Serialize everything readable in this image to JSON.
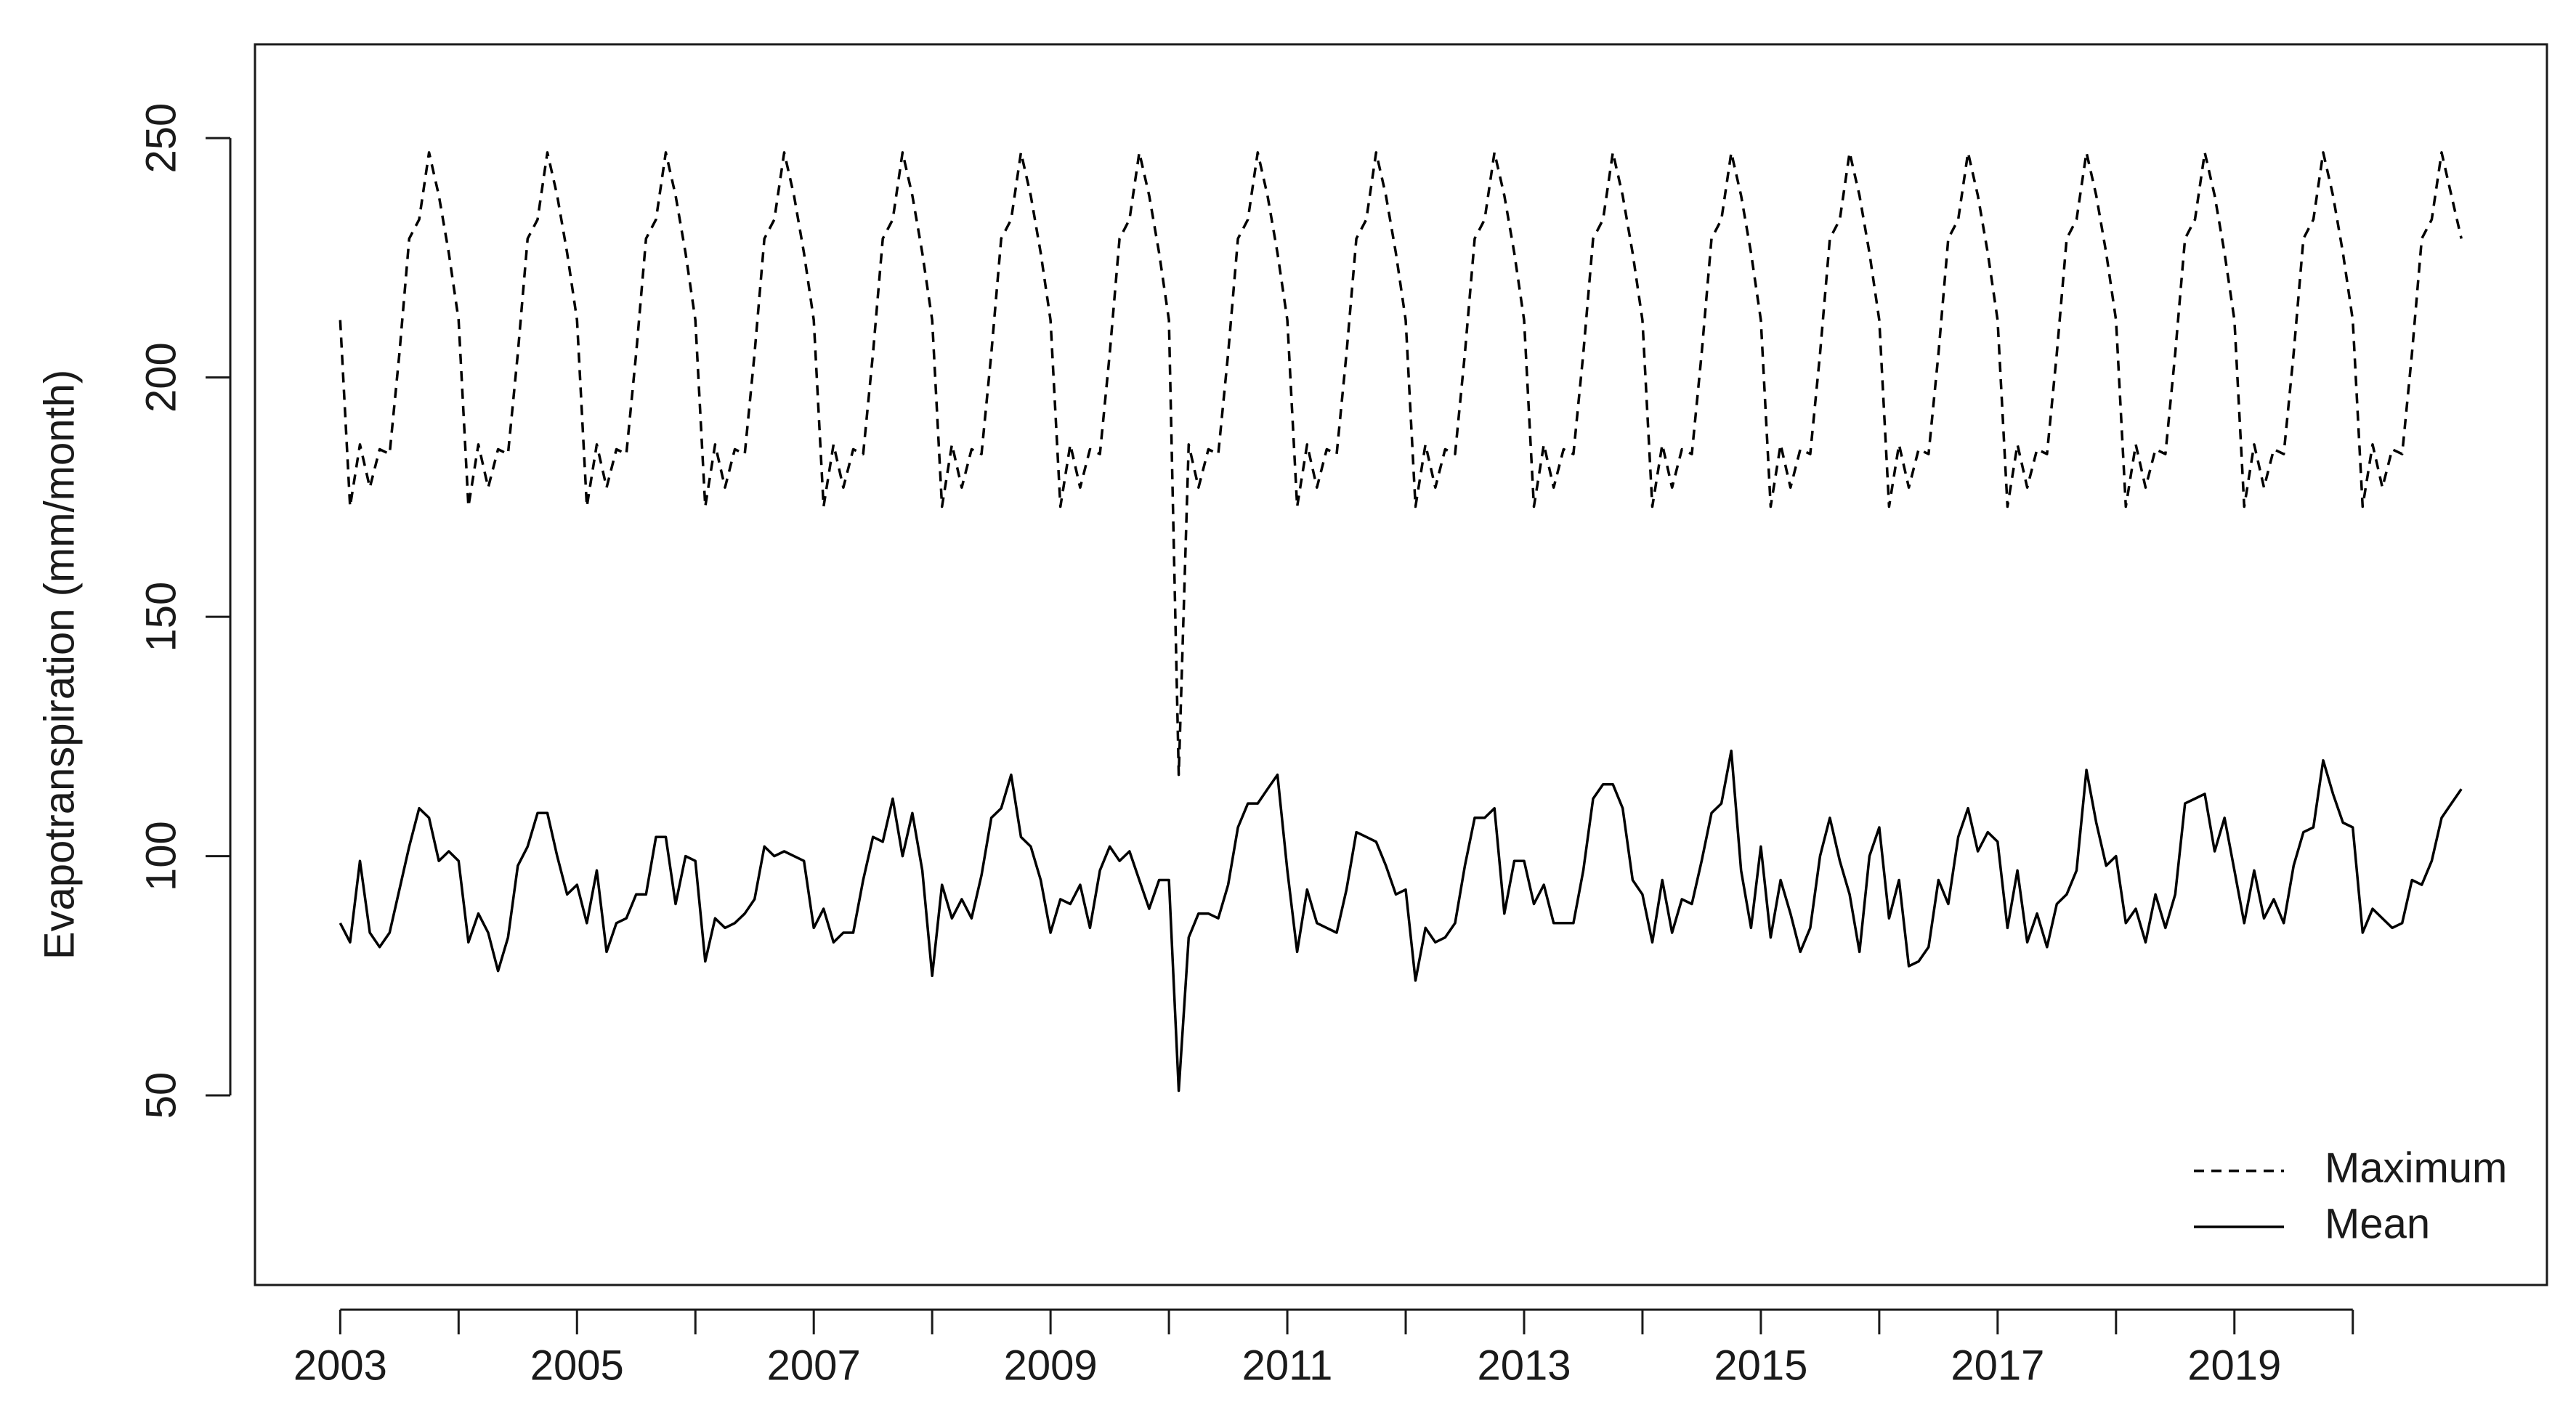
{
  "chart_data": {
    "type": "line",
    "ylabel": "Evapotranspiration (mm/month)",
    "xlim": [
      2002.28,
      2021.64
    ],
    "ylim": [
      10.4,
      269.6
    ],
    "xticks": [
      2003,
      2005,
      2007,
      2009,
      2011,
      2013,
      2015,
      2017,
      2019
    ],
    "xminor_ticks": [
      2004,
      2006,
      2008,
      2010,
      2012,
      2014,
      2016,
      2018,
      2020
    ],
    "yticks": [
      50,
      100,
      150,
      200,
      250
    ],
    "legend": "bottomright",
    "x": [
      2003,
      2003.083,
      2003.167,
      2003.25,
      2003.333,
      2003.417,
      2003.5,
      2003.583,
      2003.667,
      2003.75,
      2003.833,
      2003.917,
      2004,
      2004.083,
      2004.167,
      2004.25,
      2004.333,
      2004.417,
      2004.5,
      2004.583,
      2004.667,
      2004.75,
      2004.833,
      2004.917,
      2005,
      2005.083,
      2005.167,
      2005.25,
      2005.333,
      2005.417,
      2005.5,
      2005.583,
      2005.667,
      2005.75,
      2005.833,
      2005.917,
      2006,
      2006.083,
      2006.167,
      2006.25,
      2006.333,
      2006.417,
      2006.5,
      2006.583,
      2006.667,
      2006.75,
      2006.833,
      2006.917,
      2007,
      2007.083,
      2007.167,
      2007.25,
      2007.333,
      2007.417,
      2007.5,
      2007.583,
      2007.667,
      2007.75,
      2007.833,
      2007.917,
      2008,
      2008.083,
      2008.167,
      2008.25,
      2008.333,
      2008.417,
      2008.5,
      2008.583,
      2008.667,
      2008.75,
      2008.833,
      2008.917,
      2009,
      2009.083,
      2009.167,
      2009.25,
      2009.333,
      2009.417,
      2009.5,
      2009.583,
      2009.667,
      2009.75,
      2009.833,
      2009.917,
      2010,
      2010.083,
      2010.167,
      2010.25,
      2010.333,
      2010.417,
      2010.5,
      2010.583,
      2010.667,
      2010.75,
      2010.833,
      2010.917,
      2011,
      2011.083,
      2011.167,
      2011.25,
      2011.333,
      2011.417,
      2011.5,
      2011.583,
      2011.667,
      2011.75,
      2011.833,
      2011.917,
      2012,
      2012.083,
      2012.167,
      2012.25,
      2012.333,
      2012.417,
      2012.5,
      2012.583,
      2012.667,
      2012.75,
      2012.833,
      2012.917,
      2013,
      2013.083,
      2013.167,
      2013.25,
      2013.333,
      2013.417,
      2013.5,
      2013.583,
      2013.667,
      2013.75,
      2013.833,
      2013.917,
      2014,
      2014.083,
      2014.167,
      2014.25,
      2014.333,
      2014.417,
      2014.5,
      2014.583,
      2014.667,
      2014.75,
      2014.833,
      2014.917,
      2015,
      2015.083,
      2015.167,
      2015.25,
      2015.333,
      2015.417,
      2015.5,
      2015.583,
      2015.667,
      2015.75,
      2015.833,
      2015.917,
      2016,
      2016.083,
      2016.167,
      2016.25,
      2016.333,
      2016.417,
      2016.5,
      2016.583,
      2016.667,
      2016.75,
      2016.833,
      2016.917,
      2017,
      2017.083,
      2017.167,
      2017.25,
      2017.333,
      2017.417,
      2017.5,
      2017.583,
      2017.667,
      2017.75,
      2017.833,
      2017.917,
      2018,
      2018.083,
      2018.167,
      2018.25,
      2018.333,
      2018.417,
      2018.5,
      2018.583,
      2018.667,
      2018.75,
      2018.833,
      2018.917,
      2019,
      2019.083,
      2019.167,
      2019.25,
      2019.333,
      2019.417,
      2019.5,
      2019.583,
      2019.667,
      2019.75,
      2019.833,
      2019.917,
      2020,
      2020.083,
      2020.167,
      2020.25,
      2020.333,
      2020.417,
      2020.5,
      2020.583,
      2020.667,
      2020.75,
      2020.833,
      2020.917
    ],
    "series": [
      {
        "name": "Maximum",
        "color": "#000000",
        "linestyle": "dashed",
        "values": [
          212,
          173,
          186,
          177,
          185,
          184,
          205,
          229,
          233,
          247,
          238,
          226,
          212,
          173,
          186,
          177,
          185,
          184,
          205,
          229,
          233,
          247,
          238,
          226,
          212,
          173,
          186,
          177,
          185,
          184,
          205,
          229,
          233,
          247,
          238,
          226,
          212,
          173,
          186,
          177,
          185,
          184,
          205,
          229,
          233,
          247,
          238,
          226,
          212,
          173,
          186,
          177,
          185,
          184,
          205,
          229,
          233,
          247,
          238,
          226,
          212,
          173,
          186,
          177,
          185,
          184,
          205,
          229,
          233,
          247,
          238,
          226,
          212,
          173,
          186,
          177,
          185,
          184,
          205,
          229,
          233,
          247,
          238,
          226,
          212,
          117,
          186,
          177,
          185,
          184,
          205,
          229,
          233,
          247,
          238,
          226,
          212,
          173,
          186,
          177,
          185,
          184,
          205,
          229,
          233,
          247,
          238,
          226,
          212,
          173,
          186,
          177,
          185,
          184,
          205,
          229,
          233,
          247,
          238,
          226,
          212,
          173,
          186,
          177,
          185,
          184,
          205,
          229,
          233,
          247,
          238,
          226,
          212,
          173,
          186,
          177,
          185,
          184,
          205,
          229,
          233,
          247,
          238,
          226,
          212,
          173,
          186,
          177,
          185,
          184,
          205,
          229,
          233,
          247,
          238,
          226,
          212,
          173,
          186,
          177,
          185,
          184,
          205,
          229,
          233,
          247,
          238,
          226,
          212,
          173,
          186,
          177,
          185,
          184,
          205,
          229,
          233,
          247,
          238,
          226,
          212,
          173,
          186,
          177,
          185,
          184,
          205,
          229,
          233,
          247,
          238,
          226,
          212,
          173,
          186,
          177,
          185,
          184,
          205,
          229,
          233,
          247,
          238,
          226,
          212,
          173,
          186,
          177,
          185,
          184,
          205,
          229,
          233,
          247,
          238,
          229
        ]
      },
      {
        "name": "Mean",
        "color": "#000000",
        "linestyle": "solid",
        "values": [
          86,
          82,
          99,
          84,
          81,
          84,
          93,
          102,
          110,
          108,
          99,
          101,
          99,
          82,
          88,
          84,
          76,
          83,
          98,
          102,
          109,
          109,
          100,
          92,
          94,
          86,
          97,
          80,
          86,
          87,
          92,
          92,
          104,
          104,
          90,
          100,
          99,
          78,
          87,
          85,
          86,
          88,
          91,
          102,
          100,
          101,
          100,
          99,
          85,
          89,
          82,
          84,
          84,
          95,
          104,
          103,
          112,
          100,
          109,
          97,
          75,
          94,
          87,
          91,
          87,
          96,
          108,
          110,
          117,
          104,
          102,
          95,
          84,
          91,
          90,
          94,
          85,
          97,
          102,
          99,
          101,
          95,
          89,
          95,
          95,
          51,
          83,
          88,
          88,
          87,
          94,
          106,
          111,
          111,
          114,
          117,
          97,
          80,
          93,
          86,
          85,
          84,
          93,
          105,
          104,
          103,
          98,
          92,
          93,
          74,
          85,
          82,
          83,
          86,
          98,
          108,
          108,
          110,
          88,
          99,
          99,
          90,
          94,
          86,
          86,
          86,
          97,
          112,
          115,
          115,
          110,
          95,
          92,
          82,
          95,
          84,
          91,
          90,
          99,
          109,
          111,
          122,
          97,
          85,
          102,
          83,
          95,
          88,
          80,
          85,
          100,
          108,
          99,
          92,
          80,
          100,
          106,
          87,
          95,
          77,
          78,
          81,
          95,
          90,
          104,
          110,
          101,
          105,
          103,
          85,
          97,
          82,
          88,
          81,
          90,
          92,
          97,
          118,
          107,
          98,
          100,
          86,
          89,
          82,
          92,
          85,
          92,
          111,
          112,
          113,
          101,
          108,
          97,
          86,
          97,
          87,
          91,
          86,
          98,
          105,
          106,
          120,
          113,
          107,
          106,
          84,
          89,
          87,
          85,
          86,
          95,
          94,
          99,
          108,
          111,
          114
        ]
      }
    ]
  }
}
